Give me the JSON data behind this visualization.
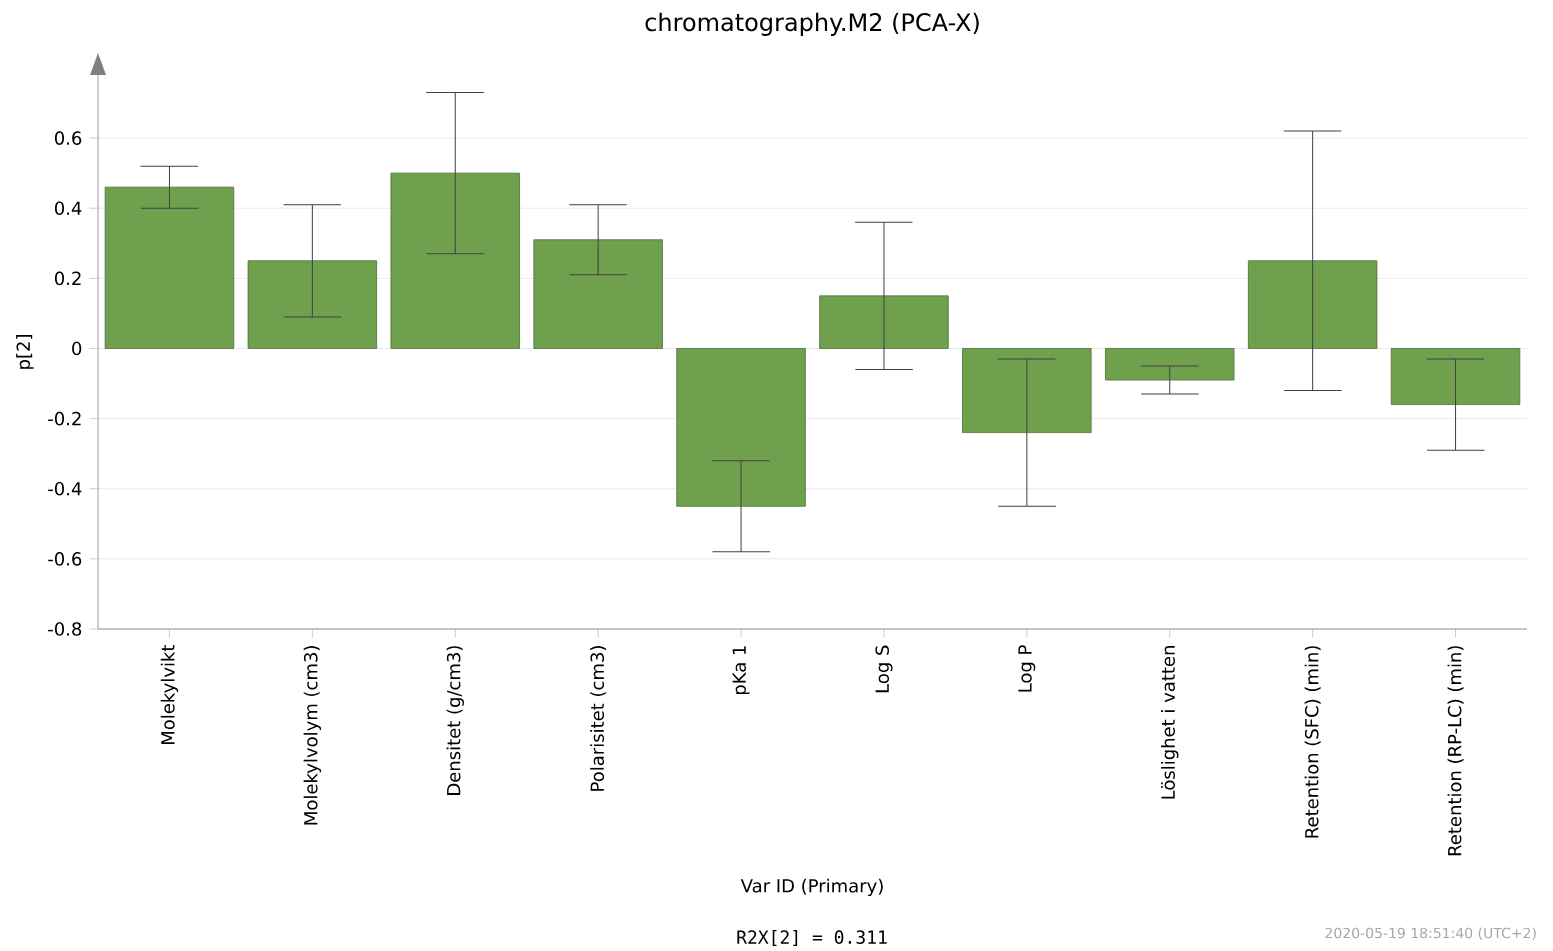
{
  "chart_data": {
    "type": "bar",
    "title": "chromatography.M2 (PCA-X)",
    "xlabel": "Var ID (Primary)",
    "ylabel": "p[2]",
    "categories": [
      "Molekylvikt",
      "Molekylvolym (cm3)",
      "Densitet (g/cm3)",
      "Polarisitet (cm3)",
      "pKa 1",
      "Log S",
      "Log P",
      "Löslighet i vatten",
      "Retention (SFC) (min)",
      "Retention (RP-LC) (min)"
    ],
    "values": [
      0.46,
      0.25,
      0.5,
      0.31,
      -0.45,
      0.15,
      -0.24,
      -0.09,
      0.25,
      -0.16
    ],
    "errors": [
      0.06,
      0.16,
      0.23,
      0.1,
      0.13,
      0.21,
      0.21,
      0.04,
      0.37,
      0.13
    ],
    "color": "#6ea04e",
    "ylim": [
      -0.8,
      0.78
    ],
    "yticks": [
      -0.8,
      -0.6,
      -0.4,
      -0.2,
      0,
      0.2,
      0.4,
      0.6
    ],
    "grid": "y",
    "annotations": [
      "R2X[2] = 0.311",
      "2020-05-19 18:51:40 (UTC+2)"
    ]
  }
}
